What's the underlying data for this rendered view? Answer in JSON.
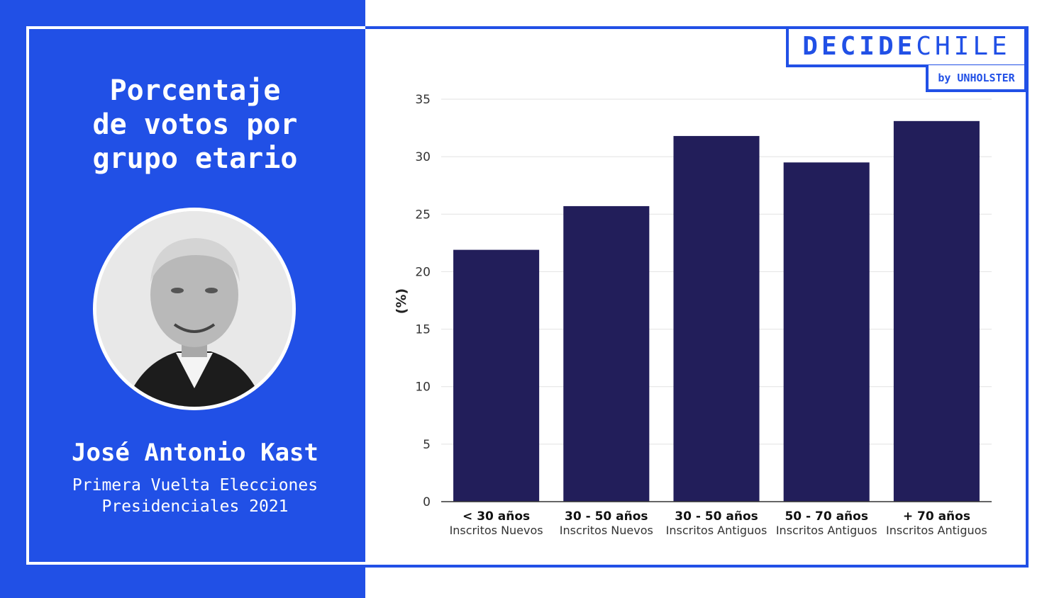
{
  "left_panel": {
    "title": "Porcentaje\nde votos por\ngrupo etario",
    "candidate_name": "José Antonio Kast",
    "subtitle": "Primera Vuelta Elecciones\nPresidenciales 2021"
  },
  "logo": {
    "bold_part": "DECIDE",
    "light_part": "CHILE",
    "byline": "by UNHOLSTER"
  },
  "colors": {
    "accent": "#2150e6",
    "bar": "#221e5a",
    "background": "#ffffff"
  },
  "chart_data": {
    "type": "bar",
    "ylabel": "(%)",
    "xlabel": "",
    "ylim": [
      0,
      35
    ],
    "yticks": [
      "0",
      "5",
      "10",
      "15",
      "20",
      "25",
      "30",
      "35"
    ],
    "grid": true,
    "categories": [
      {
        "main": "< 30 años",
        "sub": "Inscritos Nuevos"
      },
      {
        "main": "30 - 50 años",
        "sub": "Inscritos Nuevos"
      },
      {
        "main": "30 - 50 años",
        "sub": "Inscritos Antiguos"
      },
      {
        "main": "50 - 70 años",
        "sub": "Inscritos Antiguos"
      },
      {
        "main": "+ 70 años",
        "sub": "Inscritos Antiguos"
      }
    ],
    "values": [
      21.9,
      25.7,
      31.8,
      29.5,
      33.1
    ]
  }
}
